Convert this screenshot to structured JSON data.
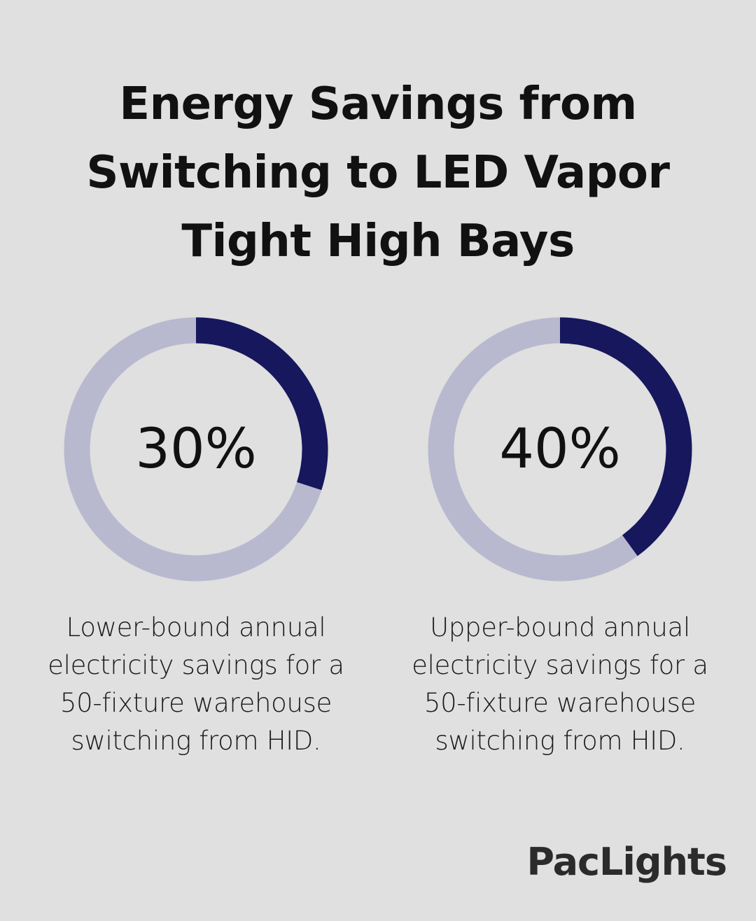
{
  "title": "Energy Savings from Switching to LED Vapor Tight High Bays",
  "brand": "PacLights",
  "colors": {
    "background": "#dfe0df",
    "track": "#b8b9cf",
    "fill": "#16175d",
    "text": "#111111"
  },
  "chart_data": [
    {
      "type": "pie",
      "value": 30,
      "max": 100,
      "label": "30%",
      "description": "Lower-bound annual electricity savings for a 50-fixture warehouse switching from HID."
    },
    {
      "type": "pie",
      "value": 40,
      "max": 100,
      "label": "40%",
      "description": "Upper-bound annual electricity savings for a 50-fixture warehouse switching from HID."
    }
  ]
}
